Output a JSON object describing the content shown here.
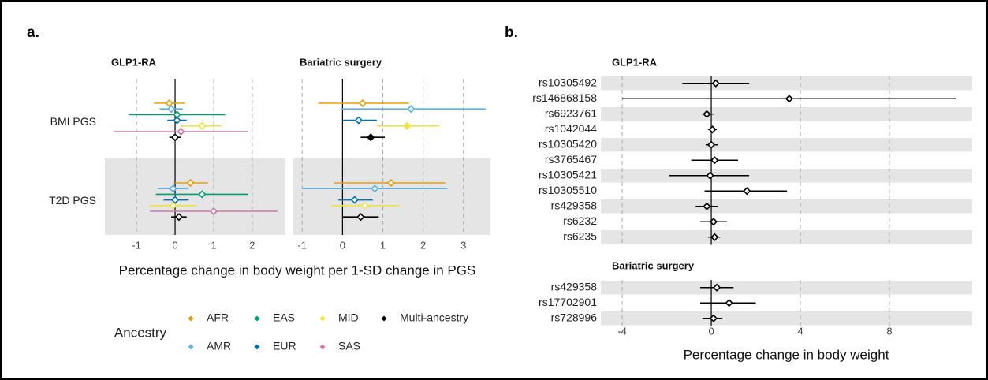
{
  "chart_data": [
    {
      "type": "forest",
      "title": "a.",
      "xlabel": "Percentage change in body weight per 1-SD change in PGS",
      "facets": [
        {
          "title": "GLP1-RA",
          "xlim": [
            -1.82,
            2.86
          ],
          "xticks": [
            -1,
            0,
            1,
            2
          ]
        },
        {
          "title": "Bariatric surgery",
          "xlim": [
            -1.22,
            3.65
          ],
          "xticks": [
            -1,
            0,
            1,
            2,
            3
          ]
        }
      ],
      "categories": [
        "BMI PGS",
        "T2D PGS"
      ],
      "legend_title": "Ancestry",
      "series": [
        {
          "name": "AFR",
          "color": "#E69F00",
          "values": [
            [
              -0.15,
              0.4
            ],
            [
              0.5,
              1.2
            ]
          ],
          "lower": [
            [
              -0.55,
              0.0
            ],
            [
              -0.6,
              -0.2
            ]
          ],
          "upper": [
            [
              0.25,
              0.85
            ],
            [
              1.65,
              2.55
            ]
          ],
          "filled": [
            [
              false,
              false
            ],
            [
              false,
              false
            ]
          ]
        },
        {
          "name": "AMR",
          "color": "#56B4E9",
          "values": [
            [
              -0.1,
              -0.05
            ],
            [
              1.7,
              0.8
            ]
          ],
          "lower": [
            [
              -0.4,
              -0.45
            ],
            [
              -0.05,
              -1.0
            ]
          ],
          "upper": [
            [
              0.2,
              0.35
            ],
            [
              3.55,
              2.6
            ]
          ],
          "filled": [
            [
              false,
              false
            ],
            [
              false,
              false
            ]
          ]
        },
        {
          "name": "EAS",
          "color": "#009E73",
          "values": [
            [
              0.05,
              0.7
            ],
            [
              null,
              null
            ]
          ],
          "lower": [
            [
              -1.2,
              -0.5
            ],
            [
              null,
              null
            ]
          ],
          "upper": [
            [
              1.3,
              1.9
            ],
            [
              null,
              null
            ]
          ],
          "filled": [
            [
              false,
              false
            ],
            [
              false,
              false
            ]
          ]
        },
        {
          "name": "EUR",
          "color": "#0072B2",
          "values": [
            [
              0.05,
              0.0
            ],
            [
              0.4,
              0.3
            ]
          ],
          "lower": [
            [
              -0.2,
              -0.3
            ],
            [
              0.0,
              -0.1
            ]
          ],
          "upper": [
            [
              0.3,
              0.35
            ],
            [
              0.85,
              0.75
            ]
          ],
          "filled": [
            [
              false,
              false
            ],
            [
              false,
              false
            ]
          ]
        },
        {
          "name": "MID",
          "color": "#F0E442",
          "values": [
            [
              0.7,
              -0.05
            ],
            [
              1.6,
              0.55
            ]
          ],
          "lower": [
            [
              0.15,
              -0.65
            ],
            [
              0.85,
              -0.3
            ]
          ],
          "upper": [
            [
              1.2,
              0.55
            ],
            [
              2.4,
              1.4
            ]
          ],
          "filled": [
            [
              false,
              false
            ],
            [
              true,
              false
            ]
          ]
        },
        {
          "name": "SAS",
          "color": "#CC79A7",
          "values": [
            [
              0.15,
              1.0
            ],
            [
              null,
              null
            ]
          ],
          "lower": [
            [
              -1.6,
              -0.65
            ],
            [
              null,
              null
            ]
          ],
          "upper": [
            [
              1.9,
              2.65
            ],
            [
              null,
              null
            ]
          ],
          "filled": [
            [
              false,
              false
            ],
            [
              false,
              false
            ]
          ]
        },
        {
          "name": "Multi-ancestry",
          "color": "#000000",
          "values": [
            [
              0.0,
              0.1
            ],
            [
              0.7,
              0.45
            ]
          ],
          "lower": [
            [
              -0.15,
              -0.1
            ],
            [
              0.45,
              0.0
            ]
          ],
          "upper": [
            [
              0.15,
              0.3
            ],
            [
              1.05,
              0.9
            ]
          ],
          "filled": [
            [
              false,
              false
            ],
            [
              true,
              false
            ]
          ]
        }
      ]
    },
    {
      "type": "forest",
      "title": "b.",
      "xlabel": "Percentage change in body weight",
      "color": "#000000",
      "xlim": [
        -4.96,
        11.72
      ],
      "xticks": [
        -4,
        0,
        4,
        8
      ],
      "groups": [
        {
          "title": "GLP1-RA",
          "categories": [
            "rs10305492",
            "rs146868158",
            "rs6923761",
            "rs1042044",
            "rs10305420",
            "rs3765467",
            "rs10305421",
            "rs10305510",
            "rs429358",
            "rs6232",
            "rs6235"
          ],
          "values": [
            0.2,
            3.5,
            -0.2,
            0.05,
            0.0,
            0.15,
            -0.05,
            1.6,
            -0.2,
            0.1,
            0.15
          ],
          "lower": [
            -1.3,
            -4.0,
            -0.4,
            -0.15,
            -0.25,
            -0.9,
            -1.9,
            -0.3,
            -0.7,
            -0.5,
            -0.15
          ],
          "upper": [
            1.7,
            11.0,
            0.1,
            0.25,
            0.3,
            1.2,
            1.7,
            3.4,
            0.3,
            0.7,
            0.4
          ]
        },
        {
          "title": "Bariatric surgery",
          "categories": [
            "rs429358",
            "rs17702901",
            "rs728996"
          ],
          "values": [
            0.25,
            0.8,
            0.1
          ],
          "lower": [
            -0.5,
            -0.5,
            -0.4
          ],
          "upper": [
            1.0,
            2.0,
            0.5
          ]
        }
      ]
    }
  ]
}
